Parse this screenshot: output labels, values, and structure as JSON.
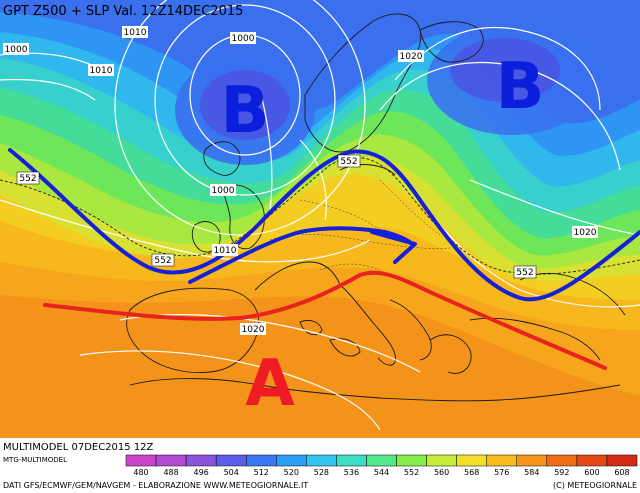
{
  "map": {
    "title": "GPT Z500 + SLP Val. 12Z14DEC2015",
    "bottom": {
      "run_label": "MULTIMODEL 07DEC2015 12Z",
      "model_label": "MTG-MULTIMODEL",
      "credits_left": "DATI GFS/ECMWF/GEM/NAVGEM - ELABORAZIONE WWW.METEOGIORNALE.IT",
      "credits_right": "(C) METEOGIORNALE"
    },
    "pressure_systems": [
      {
        "letter": "B",
        "kind": "low",
        "color": "#0a1edc"
      },
      {
        "letter": "B",
        "kind": "low",
        "color": "#0a1edc"
      },
      {
        "letter": "A",
        "kind": "high",
        "color": "#ee1b24"
      }
    ],
    "isobar_labels": [
      "1000",
      "1010",
      "1000",
      "1010",
      "1020",
      "1000",
      "1010",
      "1020",
      "1020"
    ],
    "geopotential_labels": [
      "552",
      "552",
      "552",
      "552"
    ],
    "colorbar": {
      "ticks": [
        "480",
        "488",
        "496",
        "504",
        "512",
        "520",
        "528",
        "536",
        "544",
        "552",
        "560",
        "568",
        "576",
        "584",
        "592",
        "600",
        "608"
      ],
      "colors": [
        "#cc44cc",
        "#b24ad2",
        "#8a55dc",
        "#5d5ee8",
        "#3a78f2",
        "#2c9ef6",
        "#33c3f0",
        "#3ddcc4",
        "#52e88a",
        "#86ec4c",
        "#c4ec38",
        "#f2e028",
        "#f7bb1c",
        "#f6951a",
        "#ef6e18",
        "#e54a16",
        "#d22a14"
      ]
    },
    "annotations": {
      "jet_axis_color": "#1520d8",
      "ridge_axis_color": "#e8231e"
    }
  }
}
